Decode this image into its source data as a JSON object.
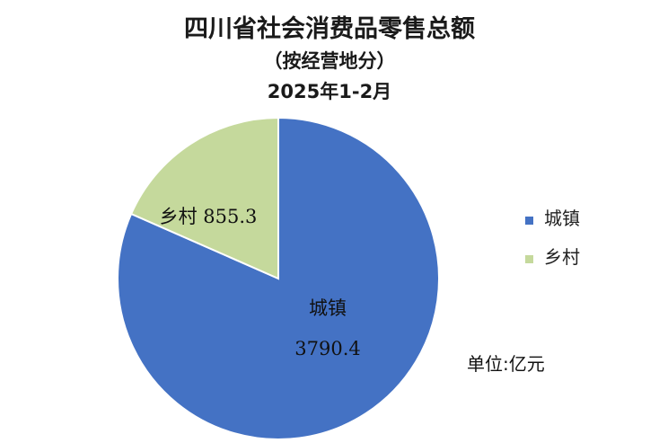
{
  "chart_data": {
    "type": "pie",
    "title": "四川省社会消费品零售总额",
    "subtitle": "（按经营地分）",
    "period": "2025年1-2月",
    "unit_label": "单位:亿元",
    "legend_position": "right",
    "slices": [
      {
        "name": "城镇",
        "value": 3790.4,
        "value_label": "3790.4",
        "color": "#4472C4"
      },
      {
        "name": "乡村",
        "value": 855.3,
        "value_label": "855.3",
        "color": "#C5D99C"
      }
    ]
  }
}
